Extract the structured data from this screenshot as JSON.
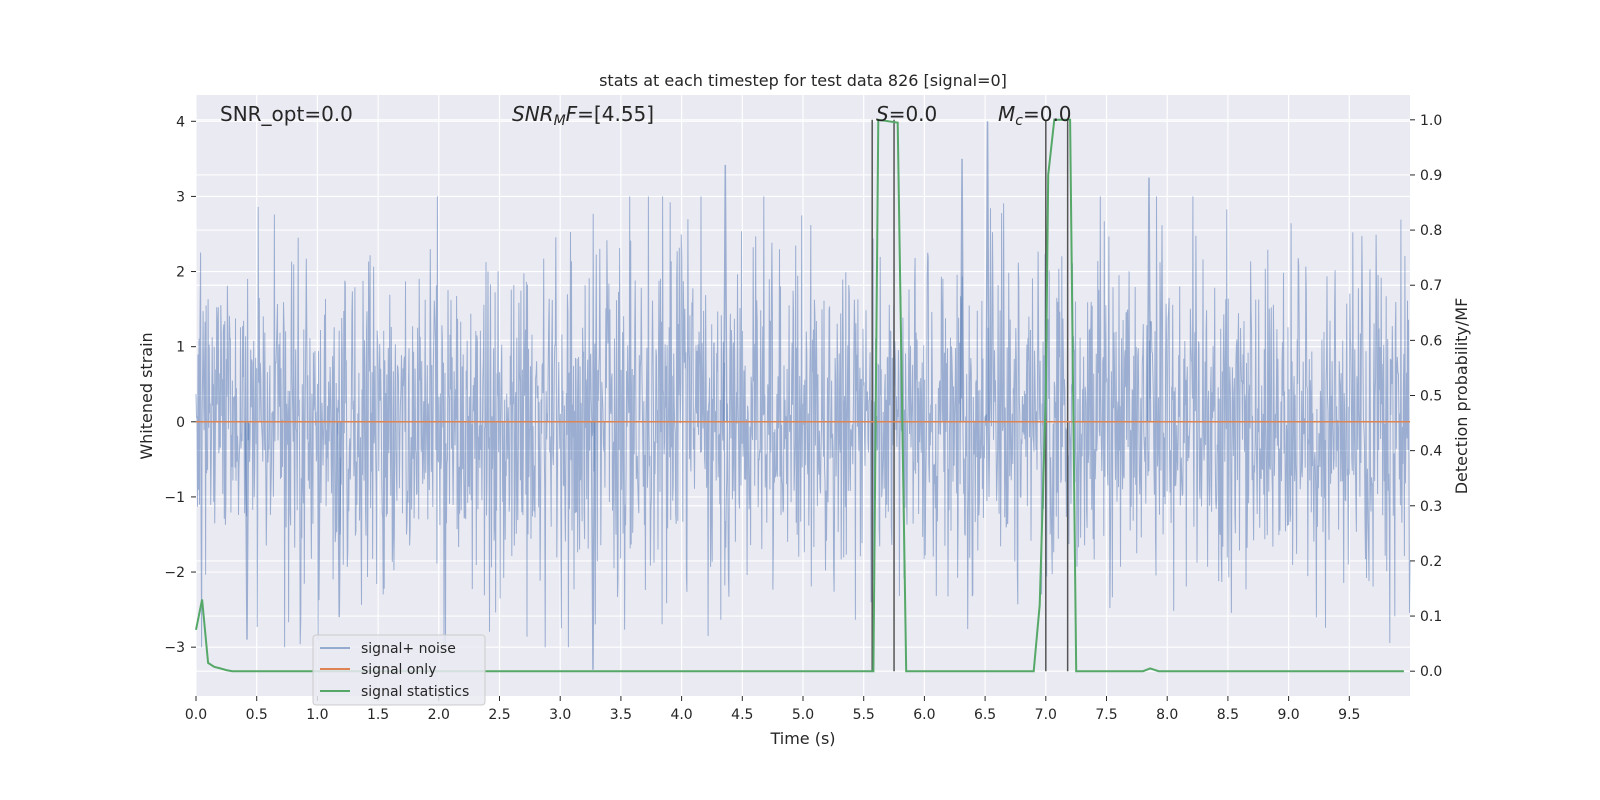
{
  "chart_data": {
    "type": "line",
    "title": "stats at each timestep for test data 826 [signal=0]",
    "xlabel": "Time (s)",
    "ylabel": "Whitened strain",
    "ylabel_right": "Detection probability/MF",
    "xlim": [
      0.0,
      10.0
    ],
    "ylim": [
      -3.65,
      4.35
    ],
    "ylim_right": [
      -0.045,
      1.045
    ],
    "grid": true,
    "x_ticks": [
      "0.0",
      "0.5",
      "1.0",
      "1.5",
      "2.0",
      "2.5",
      "3.0",
      "3.5",
      "4.0",
      "4.5",
      "5.0",
      "5.5",
      "6.0",
      "6.5",
      "7.0",
      "7.5",
      "8.0",
      "8.5",
      "9.0",
      "9.5"
    ],
    "y_ticks": [
      "4",
      "3",
      "2",
      "1",
      "0",
      "−1",
      "−2",
      "−3"
    ],
    "y_ticks_right": [
      "1.0",
      "0.9",
      "0.8",
      "0.7",
      "0.6",
      "0.5",
      "0.4",
      "0.3",
      "0.2",
      "0.1",
      "0.0"
    ],
    "annotations": {
      "snr_opt": "SNR_opt=0.0",
      "snr_mf_value": "=[4.55]",
      "s_value": "=0.0",
      "mc_value": "=0.0"
    },
    "legend": {
      "placement": "lower-left",
      "entries": [
        "signal+ noise",
        "signal only",
        "signal statistics"
      ]
    },
    "series": [
      {
        "name": "signal+ noise",
        "axis": "left",
        "color": "#4c72b0",
        "alpha": 0.5,
        "amplitude_sigma": 1.1,
        "peaks": [
          {
            "x": 4.36,
            "y": 3.42
          },
          {
            "x": 6.52,
            "y": 4.0
          },
          {
            "x": 6.31,
            "y": 3.5
          },
          {
            "x": 7.85,
            "y": 3.25
          },
          {
            "x": 3.27,
            "y": -3.3
          },
          {
            "x": 1.18,
            "y": -2.6
          },
          {
            "x": 0.42,
            "y": -2.9
          }
        ]
      },
      {
        "name": "signal only",
        "axis": "left",
        "color": "#dd8452",
        "x": [
          0.0,
          10.0
        ],
        "y": [
          0.0,
          0.0
        ]
      },
      {
        "name": "signal statistics",
        "axis": "right",
        "color": "#55a868",
        "x": [
          0.0,
          0.05,
          0.1,
          0.15,
          0.2,
          0.25,
          0.3,
          5.55,
          5.58,
          5.62,
          5.78,
          5.85,
          6.9,
          6.95,
          7.0,
          7.02,
          7.07,
          7.15,
          7.2,
          7.25,
          7.8,
          7.86,
          7.93,
          9.95
        ],
        "y": [
          0.075,
          0.13,
          0.015,
          0.008,
          0.005,
          0.002,
          0.0,
          0.0,
          0.0,
          1.0,
          0.995,
          0.0,
          0.0,
          0.12,
          0.5,
          0.9,
          1.0,
          1.0,
          1.0,
          0.0,
          0.0,
          0.005,
          0.0,
          0.0
        ]
      },
      {
        "name": "detection markers",
        "axis": "right",
        "color": "#555555",
        "segments": [
          {
            "x": [
              5.57,
              5.57
            ],
            "y": [
              0.0,
              1.0
            ]
          },
          {
            "x": [
              5.75,
              5.75
            ],
            "y": [
              0.0,
              1.0
            ]
          },
          {
            "x": [
              7.0,
              7.0
            ],
            "y": [
              0.0,
              1.0
            ]
          },
          {
            "x": [
              7.18,
              7.18
            ],
            "y": [
              0.0,
              1.0
            ]
          }
        ]
      }
    ]
  }
}
